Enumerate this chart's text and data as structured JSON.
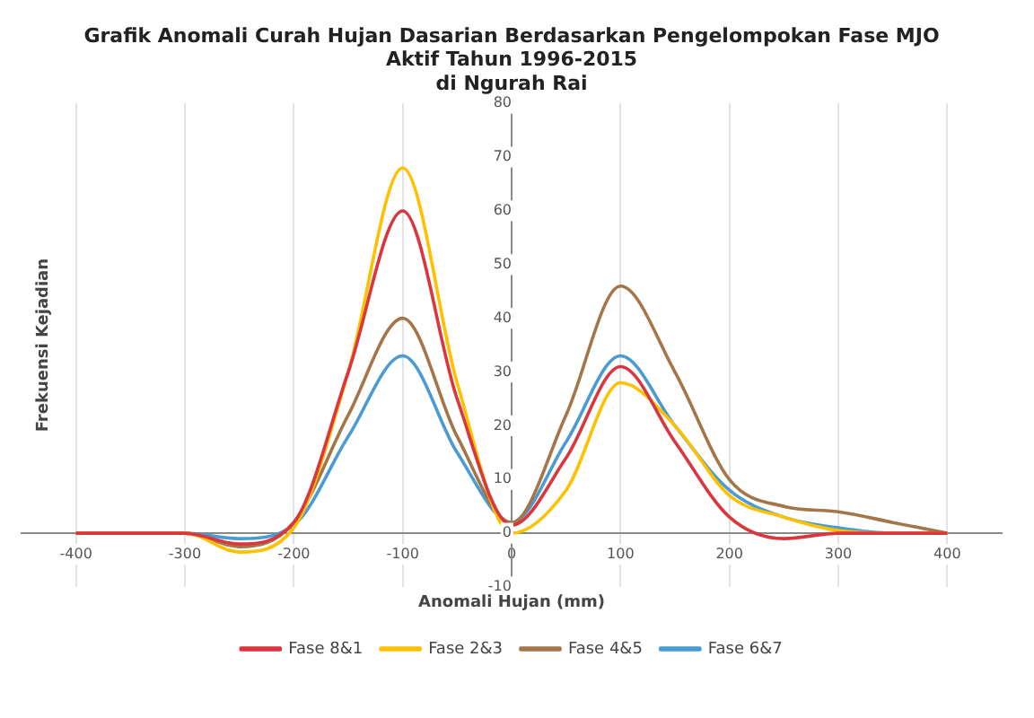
{
  "chart_data": {
    "type": "line",
    "title": "Grafik Anomali Curah Hujan Dasarian Berdasarkan Pengelompokan Fase MJO\nAktif Tahun 1996-2015\ndi Ngurah Rai",
    "xlabel": "Anomali Hujan (mm)",
    "ylabel": "Frekuensi Kejadian",
    "x": [
      -400,
      -350,
      -300,
      -250,
      -200,
      -150,
      -100,
      -50,
      0,
      50,
      100,
      150,
      200,
      250,
      300,
      350,
      400
    ],
    "series": [
      {
        "name": "Fase 8&1",
        "color": "#d9363e",
        "values": [
          0,
          0,
          0,
          -2,
          2,
          30,
          60,
          25,
          1.5,
          14,
          31,
          17,
          3,
          -1,
          0,
          0,
          0
        ]
      },
      {
        "name": "Fase 2&3",
        "color": "#ffc000",
        "values": [
          0,
          0,
          0,
          -3.5,
          1,
          30,
          68,
          28,
          0,
          8,
          28,
          20,
          7,
          3,
          0.5,
          0,
          0
        ]
      },
      {
        "name": "Fase 4&5",
        "color": "#a5754a",
        "values": [
          0,
          0,
          0,
          -2.5,
          2,
          22,
          40,
          18,
          2,
          22,
          46,
          30,
          10,
          5,
          4,
          2,
          0
        ]
      },
      {
        "name": "Fase 6&7",
        "color": "#4a9ad4",
        "values": [
          0,
          0,
          0,
          -1,
          1.5,
          18,
          33,
          15,
          2,
          17,
          33,
          20,
          8,
          3,
          1,
          0,
          0
        ]
      }
    ],
    "xlim": [
      -450,
      450
    ],
    "xticks": [
      -400,
      -300,
      -200,
      -100,
      0,
      100,
      200,
      300,
      400
    ],
    "ylim": [
      -10,
      80
    ],
    "yticks": [
      -10,
      0,
      10,
      20,
      30,
      40,
      50,
      60,
      70,
      80
    ],
    "grid": "x",
    "legend": "bottom",
    "marker": "none",
    "line_style": "solid"
  }
}
